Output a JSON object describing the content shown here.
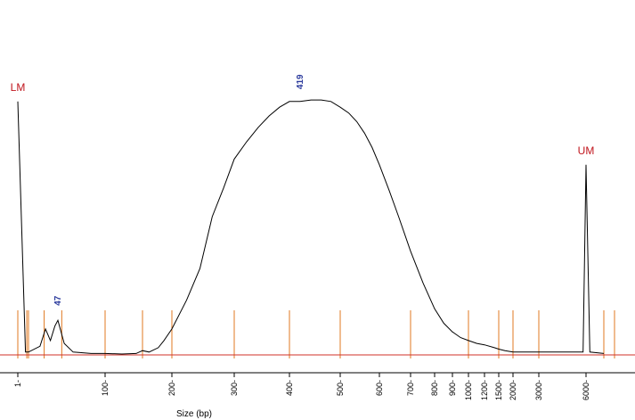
{
  "chart_data": {
    "type": "line",
    "title": "",
    "xlabel": "Size (bp)",
    "ylabel": "",
    "grid": false,
    "x_ticks": [
      "1",
      "100",
      "200",
      "300",
      "400",
      "500",
      "600",
      "700",
      "800",
      "900",
      "1000",
      "1200",
      "1500",
      "2000",
      "3000",
      "6000"
    ],
    "ladder_bands_bp": [
      1,
      15,
      25,
      35,
      50,
      100,
      150,
      200,
      300,
      400,
      500,
      700,
      1000,
      1500,
      2000,
      3000,
      7000,
      10380
    ],
    "colors": {
      "trace": "#000000",
      "baseline": "#d0302a",
      "ladder": "#e07820",
      "marker_label": "#c0141c",
      "peak_label": "#2e3d9e"
    },
    "markers": [
      {
        "name": "LM",
        "size_bp": 1,
        "relative_height": 0.88
      },
      {
        "name": "UM",
        "size_bp": 6000,
        "relative_height": 0.66
      }
    ],
    "peak_annotations": [
      {
        "label": "47",
        "size_bp": 47,
        "relative_height": 0.12
      },
      {
        "label": "419",
        "size_bp": 419,
        "relative_height": 0.88
      }
    ],
    "series": [
      {
        "x": [
          1,
          10,
          25,
          32,
          36,
          40,
          44,
          47,
          52,
          60,
          80,
          100,
          120,
          140,
          150,
          160,
          175,
          185,
          200,
          220,
          240,
          260,
          280,
          300,
          320,
          340,
          360,
          380,
          400,
          419,
          440,
          460,
          480,
          500,
          520,
          540,
          560,
          580,
          600,
          630,
          660,
          700,
          750,
          800,
          850,
          900,
          950,
          1000,
          1100,
          1200,
          1400,
          1500,
          1700,
          2000,
          2500,
          3000,
          4000,
          5000,
          5800,
          6000,
          6200,
          7000
        ],
        "y": [
          0.88,
          0.01,
          0.01,
          0.03,
          0.09,
          0.05,
          0.1,
          0.12,
          0.04,
          0.01,
          0.005,
          0.005,
          0.003,
          0.005,
          0.015,
          0.01,
          0.025,
          0.05,
          0.09,
          0.19,
          0.3,
          0.48,
          0.58,
          0.68,
          0.74,
          0.79,
          0.83,
          0.86,
          0.88,
          0.88,
          0.885,
          0.885,
          0.88,
          0.86,
          0.84,
          0.81,
          0.77,
          0.72,
          0.66,
          0.57,
          0.48,
          0.36,
          0.25,
          0.16,
          0.11,
          0.08,
          0.06,
          0.05,
          0.04,
          0.035,
          0.025,
          0.02,
          0.015,
          0.01,
          0.01,
          0.01,
          0.01,
          0.01,
          0.01,
          0.66,
          0.01,
          0.005
        ]
      }
    ]
  }
}
